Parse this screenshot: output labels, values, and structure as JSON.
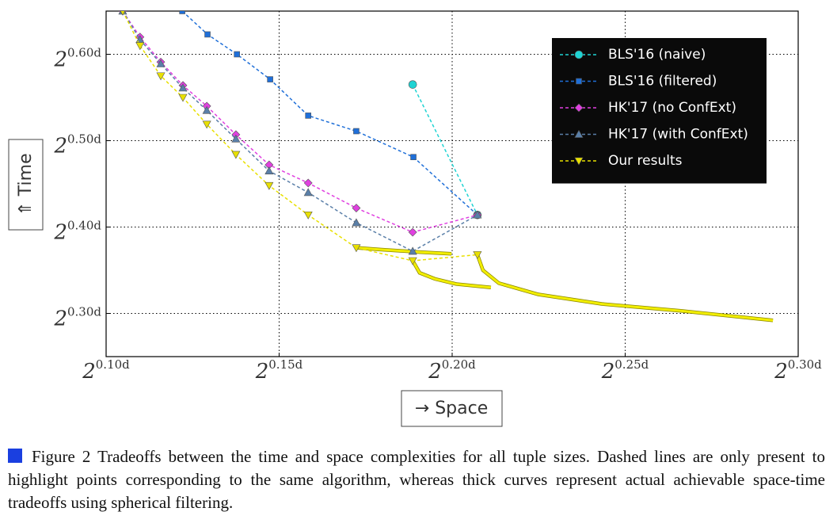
{
  "chart_data": {
    "type": "line",
    "xlim": [
      0.1,
      0.3
    ],
    "ylim": [
      0.25,
      0.65
    ],
    "grid": true,
    "legend": "upper right",
    "xticks": [
      {
        "value": 0.1,
        "base": "2",
        "exponent": "0.10d"
      },
      {
        "value": 0.15,
        "base": "2",
        "exponent": "0.15d"
      },
      {
        "value": 0.2,
        "base": "2",
        "exponent": "0.20d"
      },
      {
        "value": 0.25,
        "base": "2",
        "exponent": "0.25d"
      },
      {
        "value": 0.3,
        "base": "2",
        "exponent": "0.30d"
      }
    ],
    "yticks": [
      {
        "value": 0.3,
        "base": "2",
        "exponent": "0.30d"
      },
      {
        "value": 0.4,
        "base": "2",
        "exponent": "0.40d"
      },
      {
        "value": 0.5,
        "base": "2",
        "exponent": "0.50d"
      },
      {
        "value": 0.6,
        "base": "2",
        "exponent": "0.60d"
      }
    ],
    "xlabel": "→ Space",
    "ylabel": "⇑ Time",
    "series": [
      {
        "name": "BLS'16 (naive)",
        "color": "#1fd3d3",
        "marker": "circle",
        "x": [
          0.1886,
          0.2073
        ],
        "values": [
          0.565,
          0.414
        ]
      },
      {
        "name": "BLS'16 (filtered)",
        "color": "#1f6fd8",
        "marker": "square",
        "x": [
          0.122,
          0.1293,
          0.1378,
          0.1474,
          0.1584,
          0.1723,
          0.1888,
          0.2073
        ],
        "values": [
          0.65,
          0.623,
          0.6,
          0.571,
          0.529,
          0.511,
          0.481,
          0.414
        ]
      },
      {
        "name": "HK'17 (no ConfExt)",
        "color": "#e040e0",
        "marker": "diamond",
        "x": [
          0.1048,
          0.1098,
          0.1158,
          0.1222,
          0.1291,
          0.1375,
          0.1471,
          0.1584,
          0.1723,
          0.1886,
          0.2073
        ],
        "values": [
          0.65,
          0.62,
          0.591,
          0.564,
          0.54,
          0.507,
          0.472,
          0.451,
          0.422,
          0.394,
          0.414
        ]
      },
      {
        "name": "HK'17 (with ConfExt)",
        "color": "#5a7fa8",
        "marker": "triangle-up",
        "x": [
          0.1048,
          0.1098,
          0.1158,
          0.1222,
          0.1291,
          0.1375,
          0.1471,
          0.1584,
          0.1723,
          0.1886,
          0.2073
        ],
        "values": [
          0.65,
          0.617,
          0.589,
          0.561,
          0.535,
          0.502,
          0.465,
          0.44,
          0.405,
          0.372,
          0.414
        ]
      },
      {
        "name": "Our results",
        "color": "#e8e000",
        "marker": "triangle-down",
        "x": [
          0.1048,
          0.1098,
          0.1158,
          0.1222,
          0.1291,
          0.1375,
          0.1471,
          0.1584,
          0.1723,
          0.1886,
          0.2073
        ],
        "values": [
          0.65,
          0.61,
          0.575,
          0.55,
          0.519,
          0.484,
          0.448,
          0.414,
          0.376,
          0.361,
          0.368
        ]
      }
    ],
    "curves": [
      {
        "color": "#f2ee00",
        "x": [
          0.1723,
          0.1792,
          0.1906,
          0.1998
        ],
        "values": [
          0.376,
          0.374,
          0.371,
          0.369
        ]
      },
      {
        "color": "#f2ee00",
        "x": [
          0.1886,
          0.1906,
          0.195,
          0.2012,
          0.2112
        ],
        "values": [
          0.361,
          0.347,
          0.34,
          0.334,
          0.33
        ]
      },
      {
        "color": "#f2ee00",
        "x": [
          0.2073,
          0.2089,
          0.2135,
          0.2249,
          0.2432,
          0.2661,
          0.2927
        ],
        "values": [
          0.368,
          0.35,
          0.335,
          0.322,
          0.311,
          0.303,
          0.292
        ]
      }
    ],
    "caption": "Figure 2 Tradeoffs between the time and space complexities for all tuple sizes. Dashed lines are only present to highlight points corresponding to the same algorithm, whereas thick curves represent actual achievable space-time tradeoffs using spherical filtering."
  }
}
